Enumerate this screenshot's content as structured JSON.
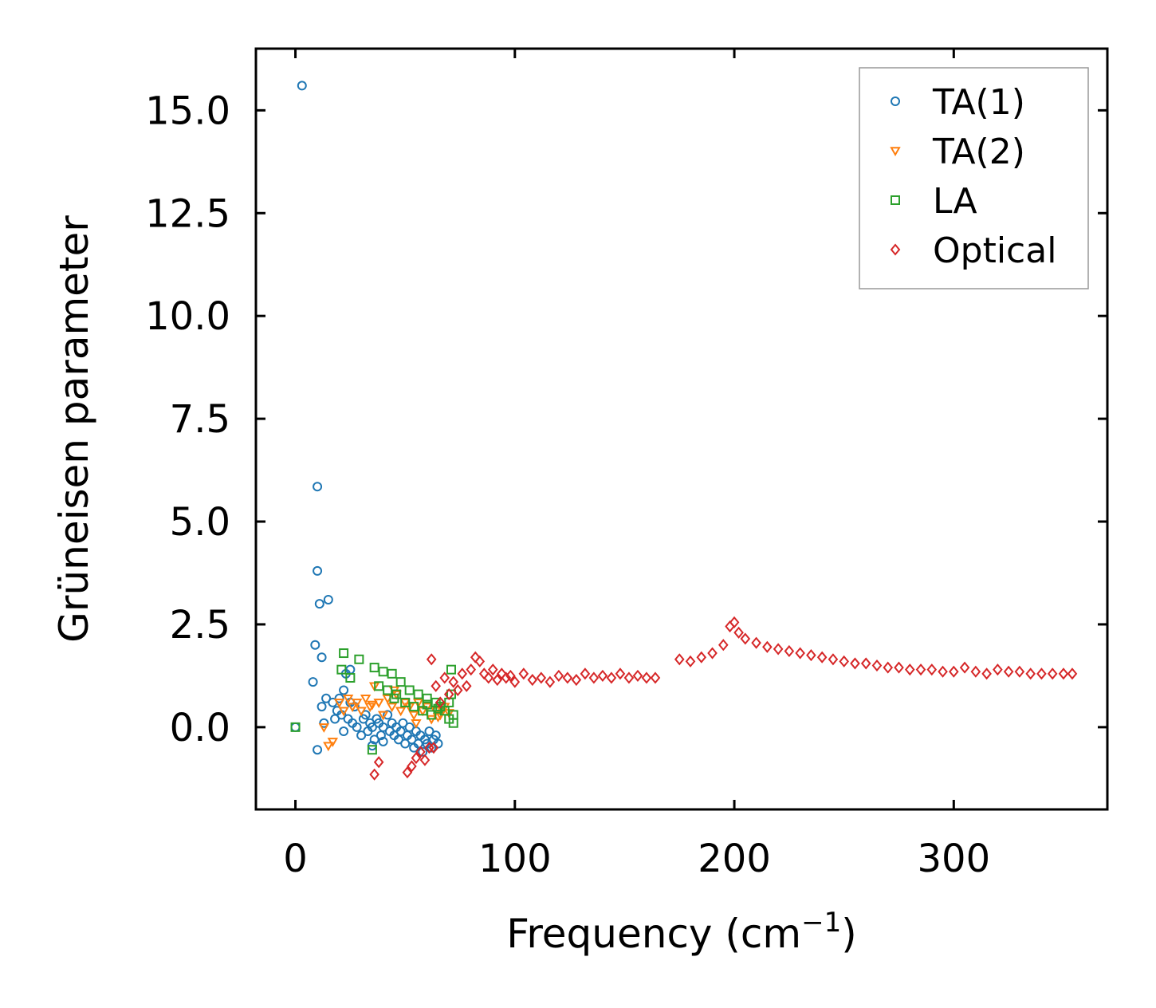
{
  "chart_data": {
    "type": "scatter",
    "title": "",
    "xlabel": "Frequency (cm",
    "xlabel_sup": "−1",
    "xlabel_close": ")",
    "ylabel": "Grüneisen parameter",
    "xlim": [
      -18,
      370
    ],
    "ylim": [
      -2.0,
      16.5
    ],
    "xticks": [
      0,
      100,
      200,
      300
    ],
    "xtick_labels": [
      "0",
      "100",
      "200",
      "300"
    ],
    "yticks": [
      0.0,
      2.5,
      5.0,
      7.5,
      10.0,
      12.5,
      15.0
    ],
    "ytick_labels": [
      "0.0",
      "2.5",
      "5.0",
      "7.5",
      "10.0",
      "12.5",
      "15.0"
    ],
    "legend_position": "top-right",
    "series": [
      {
        "name": "TA(1)",
        "marker": "circle",
        "color": "#1f77b4",
        "x": [
          0,
          3,
          10,
          10,
          11,
          15,
          9,
          8,
          12,
          12,
          13,
          14,
          17,
          19,
          20,
          21,
          22,
          23,
          24,
          25,
          26,
          27,
          28,
          30,
          31,
          32,
          33,
          34,
          35,
          36,
          37,
          38,
          39,
          40,
          42,
          43,
          44,
          45,
          46,
          47,
          48,
          49,
          50,
          51,
          52,
          53,
          54,
          55,
          56,
          57,
          58,
          59,
          60,
          61,
          62,
          63,
          64,
          65,
          10,
          18,
          22,
          25,
          35,
          40
        ],
        "y": [
          0.0,
          15.6,
          5.85,
          3.8,
          3.0,
          3.1,
          2.0,
          1.1,
          1.7,
          0.5,
          0.1,
          0.7,
          0.6,
          0.4,
          0.7,
          0.3,
          0.9,
          1.3,
          0.2,
          1.4,
          0.1,
          0.5,
          0.0,
          -0.2,
          0.2,
          0.3,
          -0.1,
          0.1,
          0.0,
          -0.3,
          0.2,
          0.1,
          -0.2,
          0.0,
          0.3,
          -0.1,
          0.1,
          -0.2,
          0.0,
          -0.3,
          -0.1,
          0.1,
          -0.4,
          -0.2,
          0.0,
          -0.3,
          -0.5,
          -0.1,
          -0.4,
          -0.2,
          -0.6,
          -0.3,
          -0.4,
          -0.1,
          -0.5,
          -0.3,
          -0.2,
          -0.4,
          -0.55,
          0.2,
          -0.1,
          0.6,
          -0.45,
          -0.35
        ]
      },
      {
        "name": "TA(2)",
        "marker": "triangle-down",
        "color": "#ff7f0e",
        "x": [
          15,
          17,
          13,
          20,
          22,
          24,
          26,
          28,
          30,
          32,
          34,
          35,
          36,
          38,
          40,
          42,
          44,
          46,
          48,
          50,
          52,
          54,
          56,
          58,
          60,
          62,
          64,
          66,
          68,
          70,
          45,
          55,
          65
        ],
        "y": [
          -0.45,
          -0.35,
          0.0,
          0.6,
          0.4,
          0.7,
          0.5,
          0.6,
          0.4,
          0.7,
          0.5,
          0.55,
          1.0,
          0.6,
          0.3,
          0.7,
          0.5,
          0.8,
          0.4,
          0.6,
          0.5,
          0.3,
          0.6,
          0.4,
          0.5,
          0.2,
          0.4,
          0.3,
          0.5,
          0.35,
          0.9,
          0.1,
          0.25
        ]
      },
      {
        "name": "LA",
        "marker": "square",
        "color": "#2ca02c",
        "x": [
          0,
          22,
          21,
          29,
          25,
          36,
          38,
          40,
          42,
          44,
          46,
          48,
          50,
          52,
          54,
          56,
          58,
          60,
          62,
          64,
          66,
          68,
          70,
          71,
          72,
          72,
          71,
          70,
          35,
          45,
          60,
          65
        ],
        "y": [
          0.0,
          1.8,
          1.4,
          1.65,
          1.2,
          1.45,
          1.0,
          1.35,
          0.9,
          1.3,
          0.8,
          1.1,
          0.6,
          0.9,
          0.5,
          0.8,
          0.4,
          0.7,
          0.3,
          0.6,
          0.5,
          0.4,
          0.6,
          0.8,
          0.3,
          0.1,
          1.4,
          0.2,
          -0.55,
          0.7,
          0.55,
          0.45
        ]
      },
      {
        "name": "Optical",
        "marker": "diamond",
        "color": "#d62728",
        "x": [
          36,
          38,
          51,
          53,
          55,
          57,
          59,
          61,
          63,
          62,
          64,
          66,
          68,
          70,
          72,
          74,
          76,
          78,
          80,
          82,
          84,
          86,
          88,
          90,
          92,
          94,
          96,
          98,
          100,
          104,
          108,
          112,
          116,
          120,
          124,
          128,
          132,
          136,
          140,
          144,
          148,
          152,
          156,
          160,
          164,
          175,
          180,
          185,
          190,
          195,
          198,
          200,
          202,
          205,
          210,
          215,
          220,
          225,
          230,
          235,
          240,
          245,
          250,
          255,
          260,
          265,
          270,
          275,
          280,
          285,
          290,
          295,
          300,
          305,
          310,
          315,
          320,
          325,
          330,
          335,
          340,
          345,
          350,
          354
        ],
        "y": [
          -1.15,
          -0.85,
          -1.1,
          -0.95,
          -0.75,
          -0.6,
          -0.8,
          -0.5,
          -0.5,
          1.65,
          1.0,
          0.6,
          1.2,
          0.8,
          1.1,
          0.9,
          1.3,
          1.0,
          1.4,
          1.7,
          1.6,
          1.3,
          1.2,
          1.4,
          1.15,
          1.3,
          1.2,
          1.25,
          1.1,
          1.3,
          1.15,
          1.2,
          1.1,
          1.25,
          1.2,
          1.15,
          1.3,
          1.2,
          1.25,
          1.2,
          1.3,
          1.2,
          1.25,
          1.2,
          1.2,
          1.65,
          1.6,
          1.7,
          1.8,
          2.0,
          2.45,
          2.55,
          2.3,
          2.15,
          2.05,
          1.95,
          1.9,
          1.85,
          1.8,
          1.75,
          1.7,
          1.65,
          1.6,
          1.55,
          1.55,
          1.5,
          1.45,
          1.45,
          1.4,
          1.4,
          1.4,
          1.35,
          1.35,
          1.45,
          1.35,
          1.3,
          1.4,
          1.35,
          1.35,
          1.3,
          1.3,
          1.3,
          1.3,
          1.3
        ]
      }
    ]
  }
}
